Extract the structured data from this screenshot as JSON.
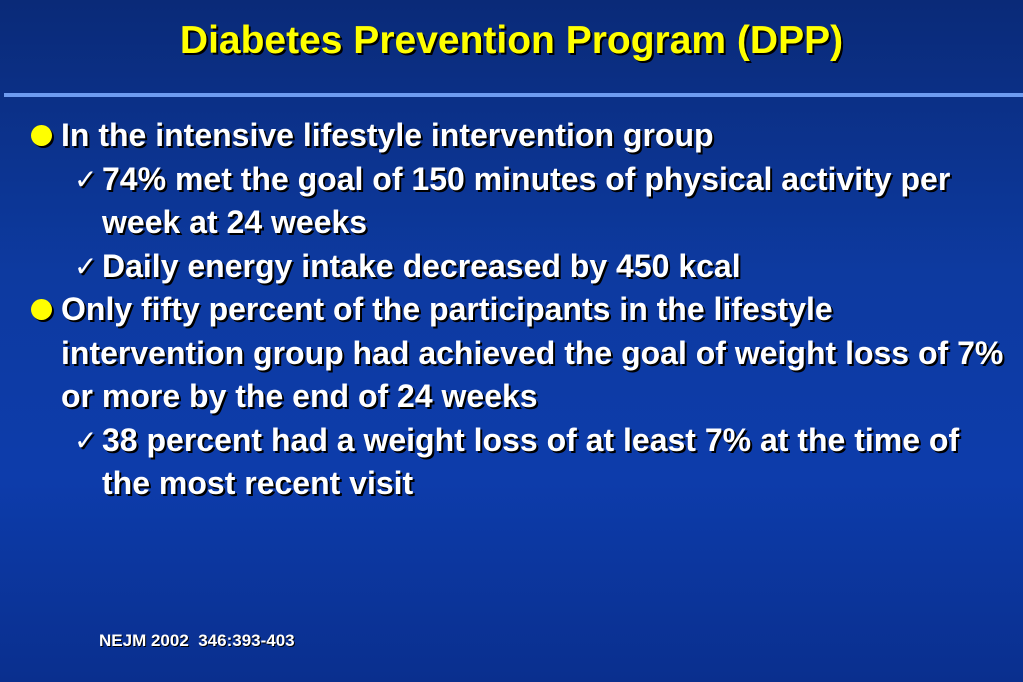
{
  "title": "Diabetes Prevention Program (DPP)",
  "items": [
    {
      "text": "In the intensive lifestyle intervention group",
      "subitems": [
        "74% met the goal of 150 minutes of physical activity per week at 24 weeks",
        "Daily energy intake decreased by 450 kcal"
      ]
    },
    {
      "text": "Only fifty percent of the participants in the lifestyle intervention group had achieved the goal of weight loss of 7% or more by the end of 24 weeks",
      "subitems": [
        "38 percent had a weight loss of at least 7% at the time of the most recent visit"
      ]
    }
  ],
  "reference": "NEJM 2002  346:393-403",
  "colors": {
    "background": "#0d3aa0",
    "title": "#ffff00",
    "bullet": "#ffff00",
    "rule": "#6e9cf0",
    "text": "#ffffff"
  },
  "icons": {
    "bullet": "round-bullet-icon",
    "sub_bullet": "checkmark-icon"
  }
}
